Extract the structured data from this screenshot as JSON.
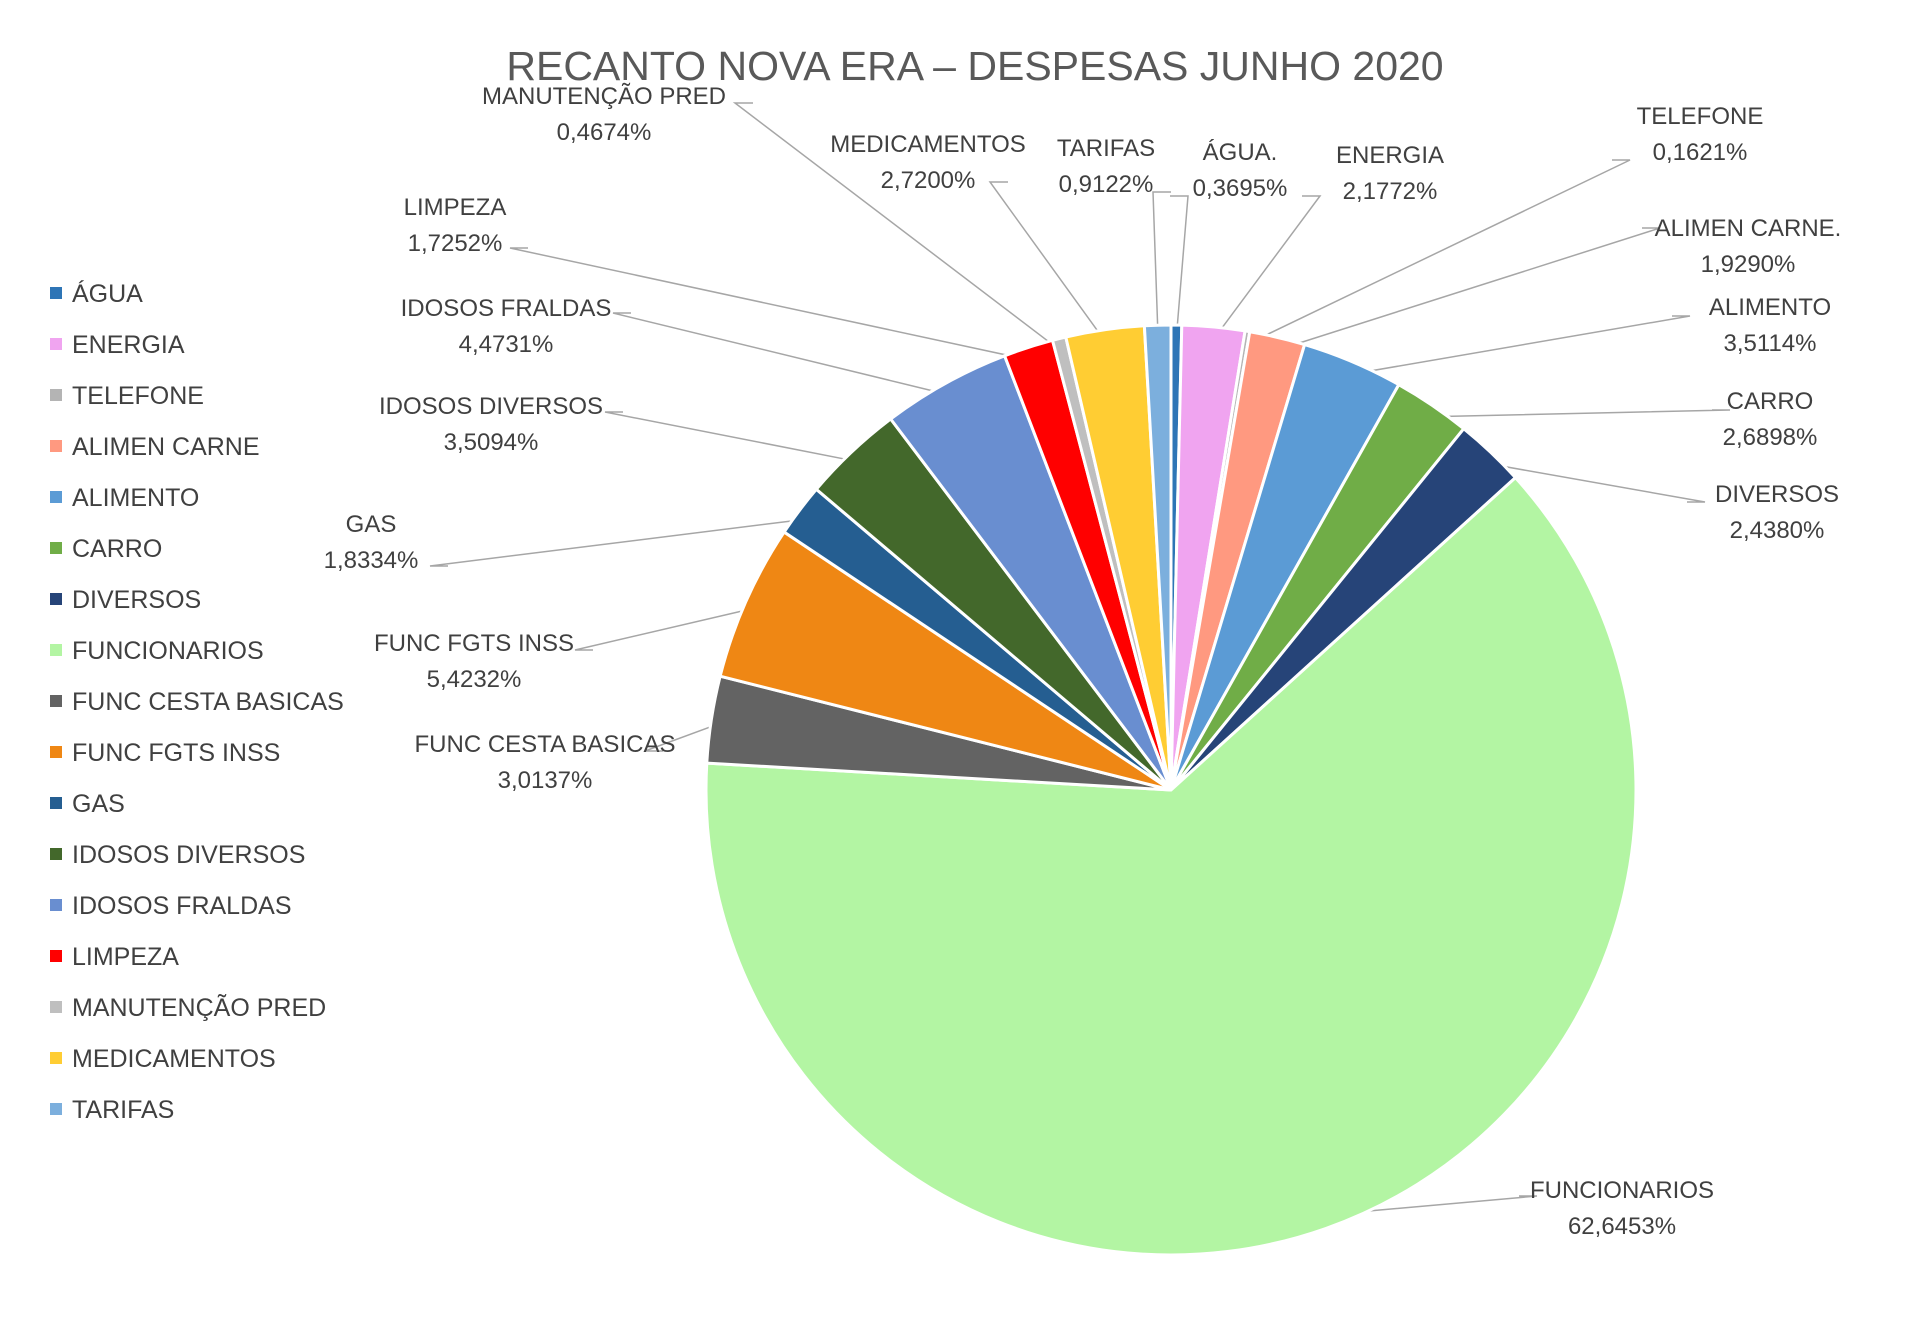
{
  "chart_data": {
    "type": "pie",
    "title": "RECANTO NOVA ERA – DESPESAS JUNHO 2020",
    "legend_position": "left",
    "slices": [
      {
        "legend": "ÁGUA",
        "label": "ÁGUA.",
        "value": 0.3695,
        "percent": "0,3695%",
        "color": "#2e75b6"
      },
      {
        "legend": "ENERGIA",
        "label": "ENERGIA",
        "value": 2.1772,
        "percent": "2,1772%",
        "color": "#f0a4f0"
      },
      {
        "legend": "TELEFONE",
        "label": "TELEFONE",
        "value": 0.1621,
        "percent": "0,1621%",
        "color": "#b4b4b4"
      },
      {
        "legend": "ALIMEN CARNE",
        "label": "ALIMEN CARNE.",
        "value": 1.929,
        "percent": "1,9290%",
        "color": "#ff9980"
      },
      {
        "legend": "ALIMENTO",
        "label": "ALIMENTO",
        "value": 3.5114,
        "percent": "3,5114%",
        "color": "#5b9bd5"
      },
      {
        "legend": "CARRO",
        "label": "CARRO",
        "value": 2.6898,
        "percent": "2,6898%",
        "color": "#70ad47"
      },
      {
        "legend": "DIVERSOS",
        "label": "DIVERSOS",
        "value": 2.438,
        "percent": "2,4380%",
        "color": "#264478"
      },
      {
        "legend": "FUNCIONARIOS",
        "label": "FUNCIONARIOS",
        "value": 62.6453,
        "percent": "62,6453%",
        "color": "#b3f5a3"
      },
      {
        "legend": "FUNC CESTA BASICAS",
        "label": "FUNC CESTA BASICAS",
        "value": 3.0137,
        "percent": "3,0137%",
        "color": "#636363"
      },
      {
        "legend": "FUNC FGTS INSS",
        "label": "FUNC FGTS INSS",
        "value": 5.4232,
        "percent": "5,4232%",
        "color": "#ef8714"
      },
      {
        "legend": "GAS",
        "label": "GAS",
        "value": 1.8334,
        "percent": "1,8334%",
        "color": "#255e91"
      },
      {
        "legend": "IDOSOS DIVERSOS",
        "label": "IDOSOS DIVERSOS",
        "value": 3.5094,
        "percent": "3,5094%",
        "color": "#43682b"
      },
      {
        "legend": "IDOSOS FRALDAS",
        "label": "IDOSOS FRALDAS",
        "value": 4.4731,
        "percent": "4,4731%",
        "color": "#698ed0"
      },
      {
        "legend": "LIMPEZA",
        "label": "LIMPEZA",
        "value": 1.7252,
        "percent": "1,7252%",
        "color": "#ff0000"
      },
      {
        "legend": "MANUTENÇÃO PRED",
        "label": "MANUTENÇÃO PRED",
        "value": 0.4674,
        "percent": "0,4674%",
        "color": "#bfbfbf"
      },
      {
        "legend": "MEDICAMENTOS",
        "label": "MEDICAMENTOS",
        "value": 2.72,
        "percent": "2,7200%",
        "color": "#ffcd33"
      },
      {
        "legend": "TARIFAS",
        "label": "TARIFAS",
        "value": 0.9122,
        "percent": "0,9122%",
        "color": "#7cafdd"
      }
    ]
  }
}
